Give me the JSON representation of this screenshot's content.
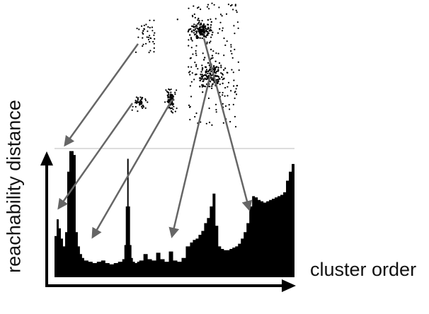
{
  "chart_data": {
    "type": "area",
    "title": "",
    "xlabel": "cluster order",
    "ylabel": "reachability distance",
    "xlim": [
      0,
      340
    ],
    "ylim": [
      0,
      1
    ],
    "grid": false,
    "reachability_profile": {
      "x": [
        0,
        3,
        6,
        9,
        12,
        15,
        18,
        21,
        24,
        27,
        30,
        33,
        36,
        39,
        42,
        48,
        54,
        60,
        66,
        72,
        78,
        84,
        90,
        96,
        99,
        101,
        103,
        105,
        107,
        109,
        111,
        114,
        117,
        120,
        126,
        132,
        138,
        144,
        150,
        156,
        162,
        168,
        174,
        180,
        186,
        192,
        196,
        200,
        204,
        208,
        212,
        216,
        220,
        224,
        228,
        232,
        236,
        240,
        244,
        248,
        252,
        256,
        260,
        264,
        268,
        272,
        276,
        280,
        284,
        288,
        292,
        296,
        300,
        304,
        308,
        312,
        316,
        320,
        324,
        328,
        332,
        336,
        340
      ],
      "values": [
        0.32,
        0.45,
        0.38,
        0.3,
        0.24,
        0.35,
        0.82,
        0.98,
        0.98,
        0.95,
        0.35,
        0.24,
        0.18,
        0.15,
        0.13,
        0.12,
        0.11,
        0.12,
        0.13,
        0.11,
        0.1,
        0.11,
        0.12,
        0.14,
        0.25,
        0.55,
        0.92,
        0.55,
        0.25,
        0.15,
        0.12,
        0.11,
        0.12,
        0.13,
        0.18,
        0.14,
        0.13,
        0.19,
        0.14,
        0.12,
        0.2,
        0.13,
        0.12,
        0.15,
        0.24,
        0.27,
        0.29,
        0.3,
        0.33,
        0.36,
        0.42,
        0.46,
        0.55,
        0.65,
        0.4,
        0.24,
        0.22,
        0.21,
        0.21,
        0.22,
        0.23,
        0.24,
        0.26,
        0.3,
        0.35,
        0.42,
        0.55,
        0.63,
        0.62,
        0.6,
        0.59,
        0.58,
        0.59,
        0.6,
        0.61,
        0.62,
        0.63,
        0.64,
        0.66,
        0.75,
        0.82,
        0.88,
        0.98
      ]
    }
  }
}
